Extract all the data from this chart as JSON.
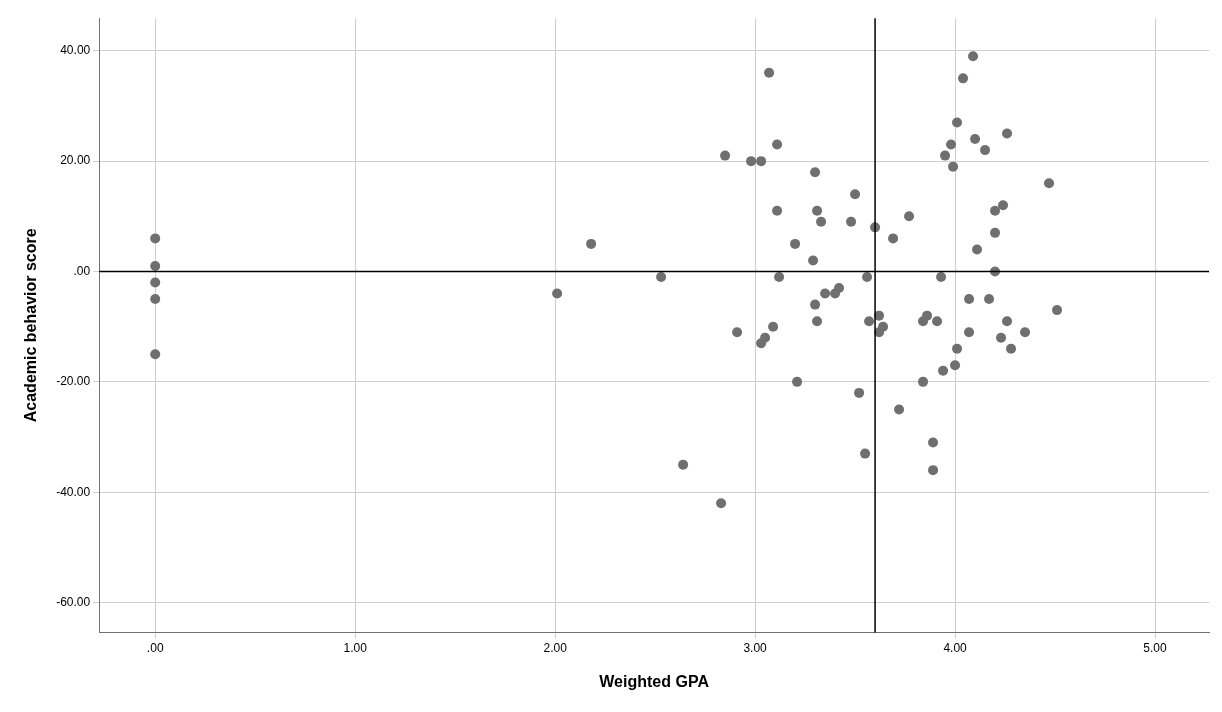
{
  "chart_data": {
    "type": "scatter",
    "xlabel": "Weighted GPA",
    "ylabel": "Academic behavior score",
    "xlim": [
      -0.28,
      5.27
    ],
    "ylim": [
      -65.4,
      45.9
    ],
    "xticks": [
      {
        "value": 0,
        "label": ".00"
      },
      {
        "value": 1,
        "label": "1.00"
      },
      {
        "value": 2,
        "label": "2.00"
      },
      {
        "value": 3,
        "label": "3.00"
      },
      {
        "value": 4,
        "label": "4.00"
      },
      {
        "value": 5,
        "label": "5.00"
      }
    ],
    "yticks": [
      {
        "value": -60,
        "label": "-60.00"
      },
      {
        "value": -40,
        "label": "-40.00"
      },
      {
        "value": -20,
        "label": "-20.00"
      },
      {
        "value": 0,
        "label": ".00"
      },
      {
        "value": 20,
        "label": "20.00"
      },
      {
        "value": 40,
        "label": "40.00"
      }
    ],
    "grid": true,
    "marker": "circle",
    "ref_lines": [
      {
        "axis": "x",
        "value": 3.6,
        "color": "#000000"
      },
      {
        "axis": "y",
        "value": 0,
        "color": "#000000"
      }
    ],
    "series": [
      {
        "color": "#6f6f6f",
        "x": [
          0,
          0,
          0,
          0,
          0,
          2.01,
          2.18,
          2.53,
          3.07,
          3.11,
          2.85,
          2.98,
          3.03,
          3.3,
          3.5,
          3.11,
          3.31,
          3.33,
          3.48,
          3.6,
          3.69,
          3.77,
          3.2,
          3.29,
          3.12,
          3.56,
          4.09,
          4.04,
          4.01,
          4.26,
          4.1,
          3.98,
          4.15,
          3.95,
          3.99,
          4.47,
          4.24,
          4.2,
          4.2,
          4.11,
          4.2,
          3.93,
          3.42,
          3.4,
          3.35,
          3.3,
          3.31,
          3.09,
          2.91,
          3.05,
          3.03,
          3.57,
          3.62,
          3.64,
          3.62,
          3.21,
          3.52,
          3.72,
          3.55,
          2.64,
          2.83,
          4.07,
          4.17,
          4.51,
          3.86,
          3.84,
          3.91,
          4.26,
          4.07,
          4.23,
          4.35,
          4.28,
          4.01,
          4.0,
          3.94,
          3.84,
          3.89,
          3.89
        ],
        "values": [
          6,
          1,
          -2,
          -5,
          -15,
          -4,
          5,
          -1,
          36,
          23,
          21,
          20,
          20,
          18,
          14,
          11,
          11,
          9,
          9,
          8,
          6,
          10,
          5,
          2,
          -1,
          -1,
          39,
          35,
          27,
          25,
          24,
          23,
          22,
          21,
          19,
          16,
          12,
          11,
          7,
          4,
          0,
          -1,
          -3,
          -4,
          -4,
          -6,
          -9,
          -10,
          -11,
          -12,
          -13,
          -9,
          -8,
          -10,
          -11,
          -20,
          -22,
          -25,
          -33,
          -35,
          -42,
          -5,
          -5,
          -7,
          -8,
          -9,
          -9,
          -9,
          -11,
          -12,
          -11,
          -14,
          -14,
          -17,
          -18,
          -20,
          -31,
          -36
        ]
      }
    ]
  }
}
